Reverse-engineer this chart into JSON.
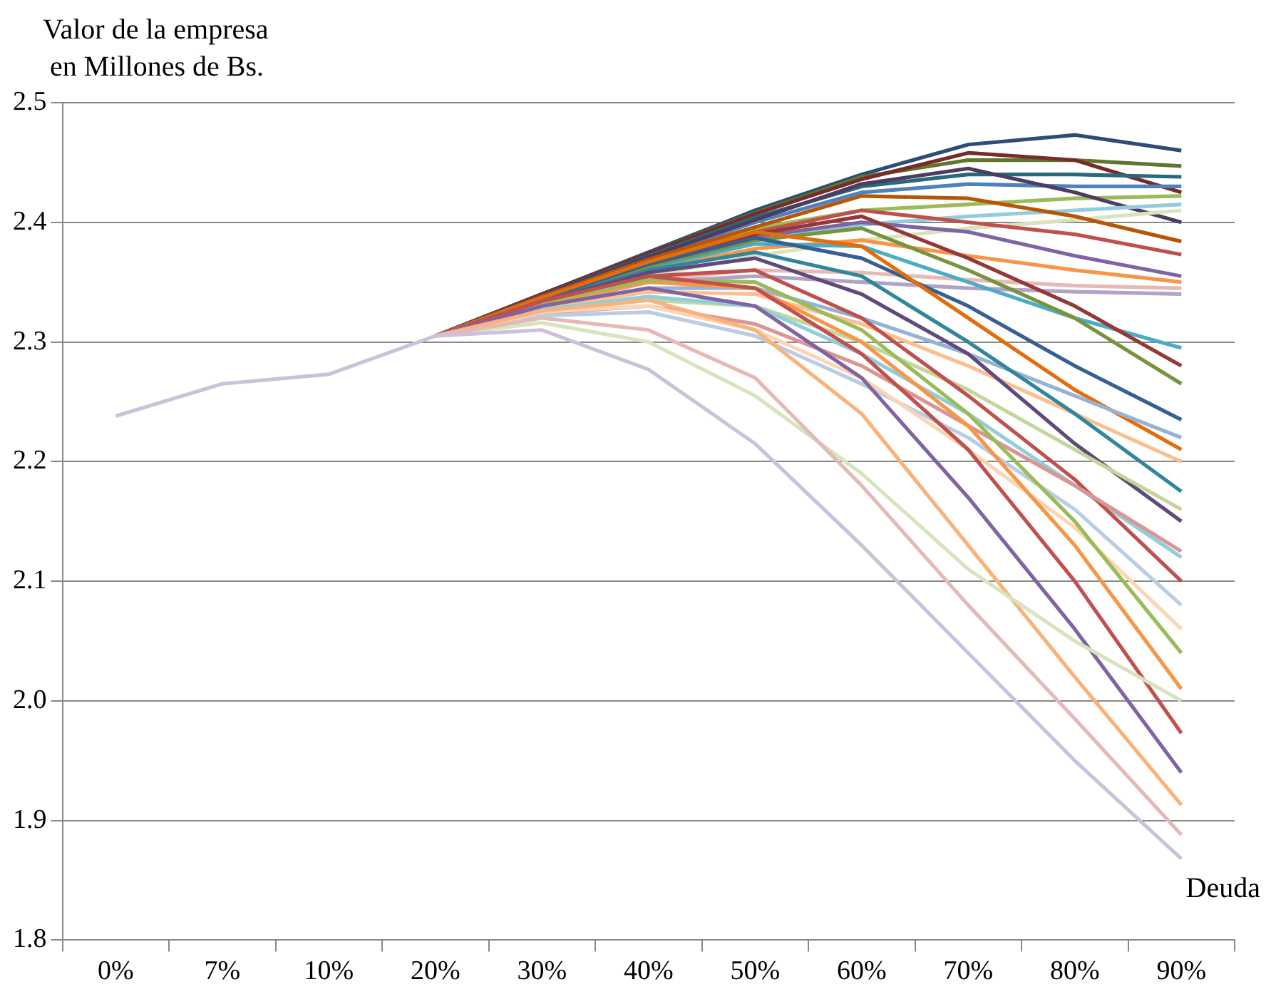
{
  "chart_data": {
    "type": "line",
    "ylabel": "Valor de la empresa\n en Millones de Bs.",
    "xlabel": "Deuda",
    "categories": [
      "0%",
      "7%",
      "10%",
      "20%",
      "30%",
      "40%",
      "50%",
      "60%",
      "70%",
      "80%",
      "90%"
    ],
    "ylim": [
      1.8,
      2.5
    ],
    "yticks": [
      {
        "value": 1.8,
        "label": "1.8"
      },
      {
        "value": 1.9,
        "label": "1.9"
      },
      {
        "value": 2.0,
        "label": "2.0"
      },
      {
        "value": 2.1,
        "label": "2.1"
      },
      {
        "value": 2.2,
        "label": "2.2"
      },
      {
        "value": 2.3,
        "label": "2.3"
      },
      {
        "value": 2.4,
        "label": "2.4"
      },
      {
        "value": 2.5,
        "label": "2.5"
      }
    ],
    "grid": "y",
    "legend": false,
    "marker": "none",
    "line_style": "solid",
    "series": [
      {
        "color": "#2c4d75",
        "values": [
          null,
          null,
          null,
          2.305,
          2.34,
          2.375,
          2.41,
          2.44,
          2.465,
          2.473,
          2.46
        ]
      },
      {
        "color": "#5f7530",
        "values": [
          null,
          null,
          null,
          2.305,
          2.34,
          2.374,
          2.408,
          2.438,
          2.452,
          2.452,
          2.447
        ]
      },
      {
        "color": "#772c2a",
        "values": [
          null,
          null,
          null,
          2.305,
          2.34,
          2.374,
          2.407,
          2.436,
          2.458,
          2.452,
          2.425
        ]
      },
      {
        "color": "#276a7c",
        "values": [
          null,
          null,
          null,
          2.305,
          2.339,
          2.372,
          2.404,
          2.43,
          2.44,
          2.44,
          2.438
        ]
      },
      {
        "color": "#4f81bd",
        "values": [
          null,
          null,
          null,
          2.305,
          2.339,
          2.37,
          2.4,
          2.425,
          2.432,
          2.43,
          2.43
        ]
      },
      {
        "color": "#9bbb59",
        "values": [
          null,
          null,
          null,
          2.305,
          2.338,
          2.368,
          2.395,
          2.41,
          2.415,
          2.42,
          2.422
        ]
      },
      {
        "color": "#4d3b62",
        "values": [
          null,
          null,
          null,
          2.305,
          2.339,
          2.371,
          2.402,
          2.432,
          2.445,
          2.425,
          2.4
        ]
      },
      {
        "color": "#93cddd",
        "values": [
          null,
          null,
          null,
          2.305,
          2.336,
          2.362,
          2.385,
          2.398,
          2.405,
          2.41,
          2.415
        ]
      },
      {
        "color": "#d7e4bd",
        "values": [
          null,
          null,
          null,
          2.305,
          2.332,
          2.355,
          2.372,
          2.385,
          2.395,
          2.402,
          2.41
        ]
      },
      {
        "color": "#b65708",
        "values": [
          null,
          null,
          null,
          2.305,
          2.338,
          2.369,
          2.396,
          2.422,
          2.42,
          2.405,
          2.384
        ]
      },
      {
        "color": "#c0504d",
        "values": [
          null,
          null,
          null,
          2.305,
          2.337,
          2.367,
          2.392,
          2.41,
          2.4,
          2.39,
          2.373
        ]
      },
      {
        "color": "#8064a2",
        "values": [
          null,
          null,
          null,
          2.305,
          2.336,
          2.365,
          2.388,
          2.4,
          2.392,
          2.372,
          2.355
        ]
      },
      {
        "color": "#f79646",
        "values": [
          null,
          null,
          null,
          2.305,
          2.334,
          2.36,
          2.378,
          2.385,
          2.372,
          2.36,
          2.35
        ]
      },
      {
        "color": "#e6b9b8",
        "values": [
          null,
          null,
          null,
          2.305,
          2.332,
          2.352,
          2.36,
          2.358,
          2.352,
          2.347,
          2.345
        ]
      },
      {
        "color": "#b3a2c7",
        "values": [
          null,
          null,
          null,
          2.305,
          2.33,
          2.35,
          2.355,
          2.35,
          2.345,
          2.342,
          2.34
        ]
      },
      {
        "color": "#4bacc6",
        "values": [
          null,
          null,
          null,
          2.305,
          2.335,
          2.362,
          2.382,
          2.38,
          2.35,
          2.32,
          2.295
        ]
      },
      {
        "color": "#953735",
        "values": [
          null,
          null,
          null,
          2.305,
          2.336,
          2.366,
          2.39,
          2.405,
          2.37,
          2.33,
          2.28
        ]
      },
      {
        "color": "#77933c",
        "values": [
          null,
          null,
          null,
          2.305,
          2.335,
          2.363,
          2.385,
          2.395,
          2.36,
          2.32,
          2.265
        ]
      },
      {
        "color": "#376092",
        "values": [
          null,
          null,
          null,
          2.305,
          2.336,
          2.365,
          2.387,
          2.37,
          2.33,
          2.28,
          2.235
        ]
      },
      {
        "color": "#e46c0a",
        "values": [
          null,
          null,
          null,
          2.305,
          2.337,
          2.367,
          2.392,
          2.38,
          2.32,
          2.26,
          2.21
        ]
      },
      {
        "color": "#95b3d7",
        "values": [
          null,
          null,
          null,
          2.305,
          2.33,
          2.345,
          2.345,
          2.32,
          2.29,
          2.255,
          2.22
        ]
      },
      {
        "color": "#fac090",
        "values": [
          null,
          null,
          null,
          2.305,
          2.328,
          2.342,
          2.34,
          2.315,
          2.28,
          2.24,
          2.2
        ]
      },
      {
        "color": "#31859c",
        "values": [
          null,
          null,
          null,
          2.305,
          2.334,
          2.36,
          2.375,
          2.355,
          2.3,
          2.24,
          2.175
        ]
      },
      {
        "color": "#604a7b",
        "values": [
          null,
          null,
          null,
          2.305,
          2.334,
          2.358,
          2.37,
          2.34,
          2.29,
          2.215,
          2.15
        ]
      },
      {
        "color": "#c3d69b",
        "values": [
          null,
          null,
          null,
          2.305,
          2.325,
          2.335,
          2.33,
          2.3,
          2.26,
          2.21,
          2.16
        ]
      },
      {
        "color": "#92cddc",
        "values": [
          null,
          null,
          null,
          2.305,
          2.327,
          2.338,
          2.33,
          2.29,
          2.24,
          2.18,
          2.12
        ]
      },
      {
        "color": "#c0504d",
        "values": [
          null,
          null,
          null,
          2.305,
          2.333,
          2.355,
          2.36,
          2.32,
          2.255,
          2.185,
          2.1
        ]
      },
      {
        "color": "#d99694",
        "values": [
          null,
          null,
          null,
          2.305,
          2.324,
          2.33,
          2.315,
          2.28,
          2.23,
          2.18,
          2.125
        ]
      },
      {
        "color": "#b9cde5",
        "values": [
          null,
          null,
          null,
          2.305,
          2.322,
          2.325,
          2.305,
          2.265,
          2.22,
          2.16,
          2.08
        ]
      },
      {
        "color": "#fcd5b5",
        "values": [
          null,
          null,
          null,
          2.305,
          2.325,
          2.33,
          2.31,
          2.27,
          2.21,
          2.145,
          2.06
        ]
      },
      {
        "color": "#f79646",
        "values": [
          null,
          null,
          null,
          2.305,
          2.332,
          2.35,
          2.345,
          2.3,
          2.23,
          2.13,
          2.01
        ]
      },
      {
        "color": "#9bbb59",
        "values": [
          null,
          null,
          null,
          2.305,
          2.333,
          2.352,
          2.35,
          2.31,
          2.24,
          2.15,
          2.04
        ]
      },
      {
        "color": "#c0504d",
        "values": [
          null,
          null,
          null,
          2.305,
          2.334,
          2.355,
          2.345,
          2.29,
          2.21,
          2.1,
          1.973
        ]
      },
      {
        "color": "#8064a2",
        "values": [
          null,
          null,
          null,
          2.305,
          2.33,
          2.345,
          2.33,
          2.27,
          2.17,
          2.06,
          1.94
        ]
      },
      {
        "color": "#fab27b",
        "values": [
          null,
          null,
          null,
          2.305,
          2.326,
          2.335,
          2.31,
          2.24,
          2.13,
          2.02,
          1.913
        ]
      },
      {
        "color": "#d7e4bd",
        "values": [
          null,
          null,
          null,
          2.305,
          2.316,
          2.3,
          2.255,
          2.19,
          2.11,
          2.05,
          2.0
        ]
      },
      {
        "color": "#e6b9b8",
        "values": [
          null,
          null,
          null,
          2.305,
          2.32,
          2.31,
          2.27,
          2.18,
          2.08,
          1.985,
          1.888
        ]
      },
      {
        "color": "#ccc1da",
        "values": [
          2.238,
          2.265,
          2.273,
          2.305,
          2.31,
          2.277,
          2.215,
          2.13,
          2.04,
          1.95,
          1.868
        ]
      }
    ]
  }
}
